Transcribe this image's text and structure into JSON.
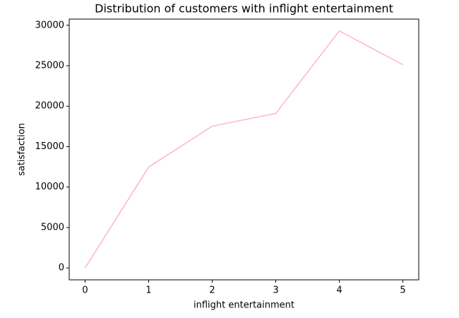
{
  "chart_data": {
    "type": "line",
    "title": "Distribution of customers with inflight entertainment",
    "x_label": "inflight entertainment",
    "y_label": "satisfaction",
    "x": [
      0,
      1,
      2,
      3,
      4,
      5
    ],
    "series": [
      {
        "name": "satisfaction",
        "color": "#ffb6c1",
        "values": [
          0,
          12470,
          17530,
          19100,
          29300,
          25120
        ]
      }
    ],
    "xlim": [
      -0.25,
      5.25
    ],
    "xticks": [
      0,
      1,
      2,
      3,
      4,
      5
    ],
    "ylim": [
      -1465,
      30765
    ],
    "yticks": [
      0,
      5000,
      10000,
      15000,
      20000,
      25000,
      30000
    ],
    "grid": false
  }
}
